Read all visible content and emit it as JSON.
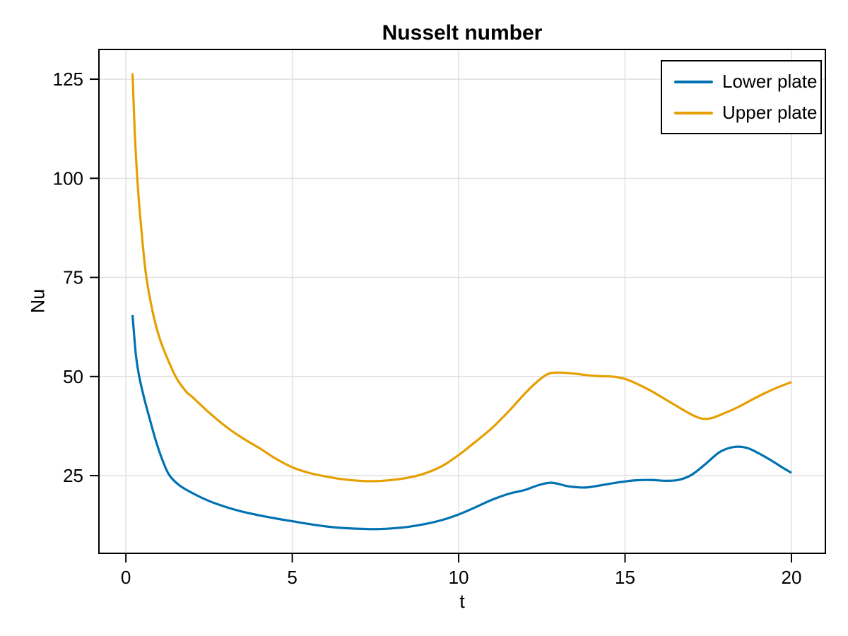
{
  "chart_data": {
    "type": "line",
    "title": "Nusselt number",
    "xlabel": "t",
    "ylabel": "Nu",
    "xlim": [
      -0.81,
      21.02
    ],
    "ylim": [
      5.4,
      132.5
    ],
    "xticks": [
      0,
      5,
      10,
      15,
      20
    ],
    "yticks": [
      25,
      50,
      75,
      100,
      125
    ],
    "grid": true,
    "legend": {
      "position": "top-right",
      "entries": [
        "Lower plate",
        "Upper plate"
      ]
    },
    "series": [
      {
        "name": "Lower plate",
        "color": "#0072B2",
        "x": [
          0.2,
          0.3,
          0.4,
          0.55,
          0.7,
          0.9,
          1.1,
          1.3,
          1.6,
          2.0,
          2.5,
          3.0,
          3.5,
          4.0,
          4.5,
          5.0,
          5.5,
          6.0,
          6.5,
          7.0,
          7.5,
          8.0,
          8.5,
          9.0,
          9.5,
          10.0,
          10.5,
          11.0,
          11.5,
          12.0,
          12.4,
          12.8,
          13.3,
          13.8,
          14.3,
          14.8,
          15.3,
          15.8,
          16.2,
          16.6,
          17.0,
          17.4,
          17.8,
          18.1,
          18.4,
          18.7,
          19.0,
          19.4,
          19.7,
          20.0
        ],
        "y": [
          65.5,
          55.5,
          50.0,
          44.5,
          39.8,
          33.8,
          28.9,
          25.2,
          22.6,
          20.6,
          18.6,
          17.1,
          15.9,
          15.0,
          14.2,
          13.5,
          12.8,
          12.2,
          11.8,
          11.6,
          11.5,
          11.7,
          12.1,
          12.8,
          13.8,
          15.2,
          17.0,
          18.9,
          20.4,
          21.4,
          22.6,
          23.2,
          22.3,
          22.0,
          22.6,
          23.3,
          23.8,
          23.9,
          23.7,
          23.9,
          25.2,
          27.8,
          30.7,
          31.9,
          32.3,
          31.9,
          30.7,
          28.8,
          27.2,
          25.7
        ]
      },
      {
        "name": "Upper plate",
        "color": "#E69F00",
        "x": [
          0.2,
          0.27,
          0.35,
          0.45,
          0.6,
          0.8,
          1.0,
          1.2,
          1.5,
          1.8,
          2.0,
          2.5,
          3.0,
          3.5,
          4.0,
          4.5,
          5.0,
          5.5,
          6.0,
          6.5,
          7.0,
          7.5,
          8.0,
          8.5,
          9.0,
          9.5,
          10.0,
          10.5,
          11.0,
          11.5,
          12.0,
          12.4,
          12.7,
          13.0,
          13.4,
          13.8,
          14.2,
          14.6,
          15.0,
          15.4,
          15.8,
          16.2,
          16.6,
          17.0,
          17.3,
          17.6,
          18.0,
          18.4,
          18.8,
          19.2,
          19.6,
          20.0
        ],
        "y": [
          126.5,
          111.0,
          99.0,
          88.5,
          76.0,
          66.5,
          60.0,
          55.5,
          49.9,
          46.3,
          44.8,
          40.9,
          37.4,
          34.5,
          32.0,
          29.3,
          27.1,
          25.7,
          24.8,
          24.1,
          23.7,
          23.6,
          23.9,
          24.5,
          25.6,
          27.4,
          30.2,
          33.5,
          37.0,
          41.2,
          45.8,
          49.0,
          50.7,
          51.0,
          50.8,
          50.4,
          50.1,
          50.0,
          49.4,
          48.0,
          46.3,
          44.3,
          42.3,
          40.4,
          39.4,
          39.5,
          40.8,
          42.3,
          44.1,
          45.8,
          47.3,
          48.6
        ]
      }
    ],
    "style": {
      "background": "#ffffff",
      "grid_color": "#e0e0e0",
      "spine_color": "#000000",
      "text_color": "#000000",
      "tick_font_size": 26,
      "line_width": 3.2
    }
  }
}
